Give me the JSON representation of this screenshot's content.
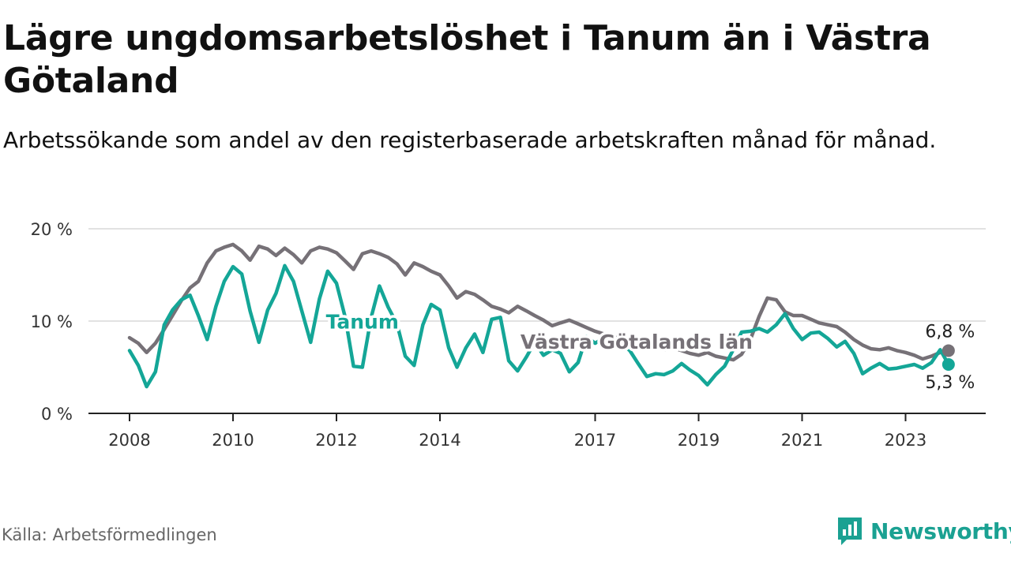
{
  "header": {
    "title": "Lägre ungdomsarbetslöshet i Tanum än i Västra Götaland",
    "subtitle": "Arbetssökande som andel av den registerbaserade arbetskraften månad för månad."
  },
  "footer": {
    "source": "Källa: Arbetsförmedlingen",
    "brand": "Newsworthy"
  },
  "colors": {
    "tanum": "#14a697",
    "vg": "#767177",
    "grid": "#d9d9d9",
    "axis": "#222222"
  },
  "chart_data": {
    "type": "line",
    "title": "Lägre ungdomsarbetslöshet i Tanum än i Västra Götaland",
    "ylabel": "",
    "xlabel": "",
    "ylim": [
      0,
      20
    ],
    "xlim": [
      2008.0,
      2024.75
    ],
    "y_ticks": [
      0,
      10,
      20
    ],
    "y_tick_labels": [
      "0 %",
      "10 %",
      "20 %"
    ],
    "x_ticks": [
      2008,
      2010,
      2012,
      2014,
      2017,
      2019,
      2021,
      2023
    ],
    "grid": true,
    "series": [
      {
        "name": "Västra Götalands län",
        "color": "#767177",
        "end_label": "6,8 %",
        "label_at": [
          2017.8,
          7.0
        ],
        "x": [
          2008.0,
          2008.17,
          2008.33,
          2008.5,
          2008.67,
          2008.83,
          2009.0,
          2009.17,
          2009.33,
          2009.5,
          2009.67,
          2009.83,
          2010.0,
          2010.17,
          2010.33,
          2010.5,
          2010.67,
          2010.83,
          2011.0,
          2011.17,
          2011.33,
          2011.5,
          2011.67,
          2011.83,
          2012.0,
          2012.17,
          2012.33,
          2012.5,
          2012.67,
          2012.83,
          2013.0,
          2013.17,
          2013.33,
          2013.5,
          2013.67,
          2013.83,
          2014.0,
          2014.17,
          2014.33,
          2014.5,
          2014.67,
          2014.83,
          2015.0,
          2015.17,
          2015.33,
          2015.5,
          2015.67,
          2015.83,
          2016.0,
          2016.17,
          2016.33,
          2016.5,
          2016.67,
          2016.83,
          2017.0,
          2017.17,
          2017.33,
          2017.5,
          2017.67,
          2017.83,
          2018.0,
          2018.17,
          2018.33,
          2018.5,
          2018.67,
          2018.83,
          2019.0,
          2019.17,
          2019.33,
          2019.5,
          2019.67,
          2019.83,
          2020.0,
          2020.17,
          2020.33,
          2020.5,
          2020.67,
          2020.83,
          2021.0,
          2021.17,
          2021.33,
          2021.5,
          2021.67,
          2021.83,
          2022.0,
          2022.17,
          2022.33,
          2022.5,
          2022.67,
          2022.83,
          2023.0,
          2023.17,
          2023.33,
          2023.5,
          2023.67,
          2023.83
        ],
        "values": [
          8.2,
          7.6,
          6.6,
          7.6,
          9.1,
          10.6,
          12.2,
          13.6,
          14.3,
          16.3,
          17.6,
          18.0,
          18.3,
          17.6,
          16.6,
          18.1,
          17.8,
          17.1,
          17.9,
          17.2,
          16.3,
          17.6,
          18.0,
          17.8,
          17.4,
          16.5,
          15.6,
          17.3,
          17.6,
          17.3,
          16.9,
          16.2,
          15.0,
          16.3,
          15.9,
          15.4,
          15.0,
          13.8,
          12.5,
          13.2,
          12.9,
          12.3,
          11.6,
          11.3,
          10.9,
          11.6,
          11.1,
          10.6,
          10.1,
          9.5,
          9.8,
          10.1,
          9.7,
          9.3,
          8.9,
          8.6,
          8.2,
          8.3,
          7.9,
          7.7,
          7.5,
          7.2,
          6.9,
          7.1,
          6.8,
          6.5,
          6.3,
          6.6,
          6.2,
          6.0,
          5.8,
          6.4,
          8.0,
          10.5,
          12.5,
          12.3,
          11.0,
          10.6,
          10.6,
          10.2,
          9.8,
          9.6,
          9.4,
          8.8,
          8.0,
          7.4,
          7.0,
          6.9,
          7.1,
          6.8,
          6.6,
          6.3,
          5.9,
          6.2,
          6.6,
          6.8
        ]
      },
      {
        "name": "Tanum",
        "color": "#14a697",
        "end_label": "5,3 %",
        "label_at": [
          2012.5,
          9.2
        ],
        "x": [
          2008.0,
          2008.17,
          2008.33,
          2008.5,
          2008.67,
          2008.83,
          2009.0,
          2009.17,
          2009.33,
          2009.5,
          2009.67,
          2009.83,
          2010.0,
          2010.17,
          2010.33,
          2010.5,
          2010.67,
          2010.83,
          2011.0,
          2011.17,
          2011.33,
          2011.5,
          2011.67,
          2011.83,
          2012.0,
          2012.17,
          2012.33,
          2012.5,
          2012.67,
          2012.83,
          2013.0,
          2013.17,
          2013.33,
          2013.5,
          2013.67,
          2013.83,
          2014.0,
          2014.17,
          2014.33,
          2014.5,
          2014.67,
          2014.83,
          2015.0,
          2015.17,
          2015.33,
          2015.5,
          2015.67,
          2015.83,
          2016.0,
          2016.17,
          2016.33,
          2016.5,
          2016.67,
          2016.83,
          2017.0,
          2017.17,
          2017.33,
          2017.5,
          2017.67,
          2017.83,
          2018.0,
          2018.17,
          2018.33,
          2018.5,
          2018.67,
          2018.83,
          2019.0,
          2019.17,
          2019.33,
          2019.5,
          2019.67,
          2019.83,
          2020.0,
          2020.17,
          2020.33,
          2020.5,
          2020.67,
          2020.83,
          2021.0,
          2021.17,
          2021.33,
          2021.5,
          2021.67,
          2021.83,
          2022.0,
          2022.17,
          2022.33,
          2022.5,
          2022.67,
          2022.83,
          2023.0,
          2023.17,
          2023.33,
          2023.5,
          2023.67,
          2023.83
        ],
        "values": [
          6.8,
          5.2,
          2.9,
          4.5,
          9.6,
          11.2,
          12.3,
          12.8,
          10.6,
          8.0,
          11.6,
          14.3,
          15.9,
          15.1,
          11.1,
          7.7,
          11.2,
          13.0,
          16.0,
          14.3,
          11.1,
          7.7,
          12.4,
          15.4,
          14.1,
          10.4,
          5.1,
          5.0,
          10.4,
          13.8,
          11.5,
          9.7,
          6.2,
          5.2,
          9.6,
          11.8,
          11.2,
          7.1,
          5.0,
          7.1,
          8.6,
          6.6,
          10.2,
          10.4,
          5.7,
          4.6,
          6.1,
          7.7,
          6.3,
          6.9,
          6.5,
          4.5,
          5.5,
          8.3,
          7.6,
          8.2,
          8.4,
          7.6,
          6.8,
          5.4,
          4.0,
          4.3,
          4.2,
          4.6,
          5.4,
          4.7,
          4.1,
          3.1,
          4.2,
          5.1,
          6.9,
          8.8,
          8.9,
          9.2,
          8.8,
          9.6,
          10.8,
          9.2,
          8.0,
          8.7,
          8.8,
          8.1,
          7.2,
          7.8,
          6.5,
          4.3,
          4.9,
          5.4,
          4.8,
          4.9,
          5.1,
          5.3,
          4.9,
          5.5,
          6.9,
          5.3
        ]
      }
    ]
  }
}
